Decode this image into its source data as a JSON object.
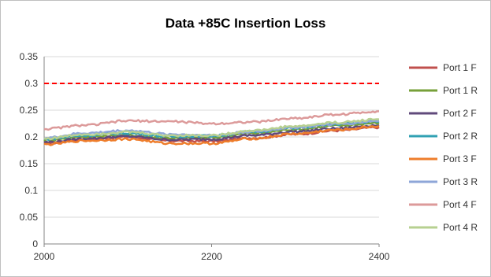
{
  "chart_data": {
    "type": "line",
    "title": "Data +85C Insertion Loss",
    "xlabel": "",
    "ylabel": "",
    "xlim": [
      2000,
      2400
    ],
    "ylim": [
      0,
      0.35
    ],
    "x_ticks": [
      "2000",
      "2200",
      "2400"
    ],
    "y_ticks": [
      "0",
      "0.05",
      "0.1",
      "0.15",
      "0.2",
      "0.25",
      "0.3",
      "0.35"
    ],
    "grid": "horizontal",
    "legend_position": "right",
    "x": [
      2000,
      2050,
      2100,
      2150,
      2200,
      2250,
      2300,
      2350,
      2400
    ],
    "series": [
      {
        "name": "Port 1 F",
        "color": "#c0504d",
        "values": [
          0.188,
          0.195,
          0.2,
          0.193,
          0.192,
          0.198,
          0.205,
          0.212,
          0.218
        ]
      },
      {
        "name": "Port 1 R",
        "color": "#77a03a",
        "values": [
          0.194,
          0.2,
          0.203,
          0.198,
          0.199,
          0.207,
          0.214,
          0.221,
          0.226
        ]
      },
      {
        "name": "Port 2 F",
        "color": "#604a7b",
        "values": [
          0.19,
          0.197,
          0.201,
          0.195,
          0.196,
          0.203,
          0.21,
          0.216,
          0.222
        ]
      },
      {
        "name": "Port 2 R",
        "color": "#31a1b3",
        "values": [
          0.196,
          0.203,
          0.207,
          0.201,
          0.202,
          0.21,
          0.217,
          0.224,
          0.229
        ]
      },
      {
        "name": "Port 3 F",
        "color": "#ee7d2b",
        "values": [
          0.186,
          0.193,
          0.196,
          0.188,
          0.188,
          0.197,
          0.206,
          0.213,
          0.22
        ]
      },
      {
        "name": "Port 3 R",
        "color": "#8ea6d8",
        "values": [
          0.198,
          0.207,
          0.212,
          0.205,
          0.203,
          0.21,
          0.218,
          0.224,
          0.23
        ]
      },
      {
        "name": "Port 4 F",
        "color": "#dc9a9a",
        "values": [
          0.215,
          0.222,
          0.23,
          0.229,
          0.225,
          0.228,
          0.235,
          0.242,
          0.248
        ]
      },
      {
        "name": "Port 4 R",
        "color": "#b7d090",
        "values": [
          0.197,
          0.205,
          0.209,
          0.203,
          0.203,
          0.212,
          0.22,
          0.227,
          0.233
        ]
      }
    ],
    "reference_line": {
      "value": 0.3,
      "color": "#ff0000",
      "style": "dashed"
    }
  }
}
